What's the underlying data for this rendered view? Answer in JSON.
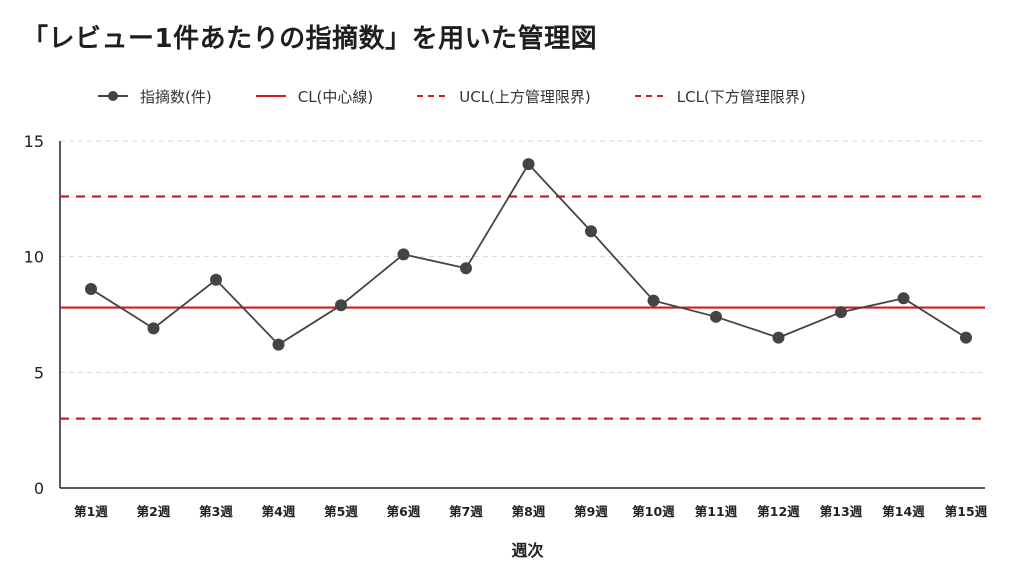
{
  "chart_data": {
    "type": "line",
    "title": "「レビュー1件あたりの指摘数」を用いた管理図",
    "xlabel": "週次",
    "ylabel": "",
    "ylim": [
      0,
      15
    ],
    "yticks": [
      0,
      5,
      10,
      15
    ],
    "grid": true,
    "legend_position": "top",
    "categories": [
      "第1週",
      "第2週",
      "第3週",
      "第4週",
      "第5週",
      "第6週",
      "第7週",
      "第8週",
      "第9週",
      "第10週",
      "第11週",
      "第12週",
      "第13週",
      "第14週",
      "第15週"
    ],
    "series": [
      {
        "name": "指摘数(件)",
        "values": [
          8.6,
          6.9,
          9.0,
          6.2,
          7.9,
          10.1,
          9.5,
          14.0,
          11.1,
          8.1,
          7.4,
          6.5,
          7.6,
          8.2,
          6.5
        ],
        "color": "#444444"
      }
    ],
    "lines": [
      {
        "name": "CL(中心線)",
        "value": 7.8,
        "color": "#cc1f1f",
        "style": "solid"
      },
      {
        "name": "UCL(上方管理限界)",
        "value": 12.6,
        "color": "#cc1f1f",
        "style": "dashed"
      },
      {
        "name": "LCL(下方管理限界)",
        "value": 3.0,
        "color": "#cc1f1f",
        "style": "dashed"
      }
    ]
  }
}
